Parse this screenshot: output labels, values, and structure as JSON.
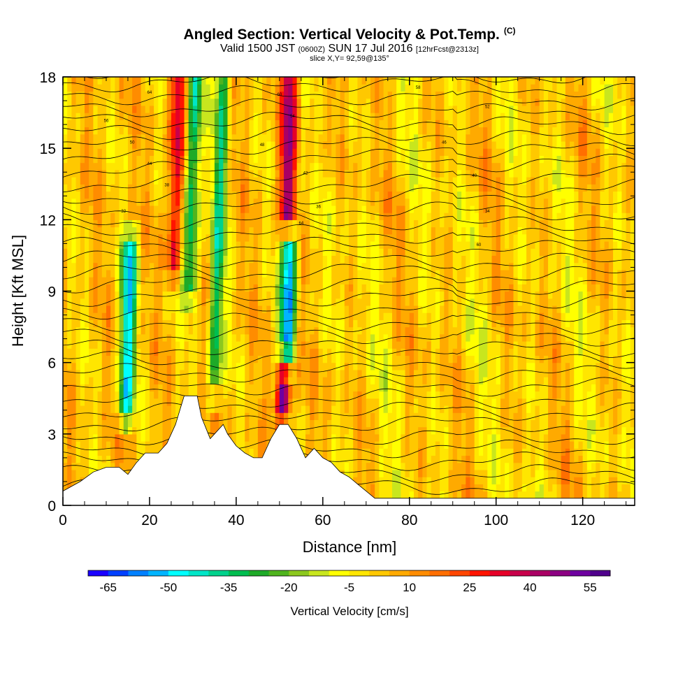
{
  "header": {
    "title": "Angled Section: Vertical Velocity & Pot.Temp.",
    "title_tag": "(C)",
    "valid_pre": "Valid 1500 JST",
    "valid_z": "(0600Z)",
    "valid_date": "SUN 17 Jul 2016",
    "fcst": "[12hrFcst@2313z]",
    "slice": "slice X,Y= 92,59@135°"
  },
  "chart_data": {
    "type": "heatmap",
    "title": "Angled Section: Vertical Velocity & Pot.Temp.",
    "xlabel": "Distance [nm]",
    "ylabel": "Height [Kft MSL]",
    "xlim": [
      0,
      132
    ],
    "ylim": [
      0,
      18
    ],
    "x_ticks": [
      0,
      20,
      40,
      60,
      80,
      100,
      120
    ],
    "y_ticks": [
      0,
      3,
      6,
      9,
      12,
      15,
      18
    ],
    "colorbar": {
      "label": "Vertical Velocity [cm/s]",
      "min": -70,
      "max": 60,
      "step": 5,
      "tick_values": [
        -65,
        -50,
        -35,
        -20,
        -5,
        10,
        25,
        40,
        55
      ],
      "colors": [
        "#1a00ff",
        "#0040ff",
        "#0080ff",
        "#00b4ff",
        "#00ffff",
        "#00e6c8",
        "#00d28c",
        "#00be50",
        "#1eaa28",
        "#50b41e",
        "#8cc81e",
        "#c8e61e",
        "#ffff00",
        "#ffe600",
        "#ffc800",
        "#ffaa00",
        "#ff8c00",
        "#ff6e00",
        "#ff4600",
        "#ff1400",
        "#e60028",
        "#c8004b",
        "#aa0064",
        "#8c0082",
        "#6e00a0",
        "#50008c"
      ]
    },
    "updrafts": [
      {
        "x": 15,
        "y_min": 4,
        "y_max": 11,
        "value": -50
      },
      {
        "x": 30,
        "y_min": 9,
        "y_max": 18,
        "value": -40
      },
      {
        "x": 36,
        "y_min": 5,
        "y_max": 18,
        "value": -35
      },
      {
        "x": 52,
        "y_min": 6,
        "y_max": 11,
        "value": -60
      },
      {
        "x": 51,
        "y_min": 4,
        "y_max": 6,
        "value": 55
      },
      {
        "x": 52,
        "y_min": 12,
        "y_max": 18,
        "value": 40
      },
      {
        "x": 26,
        "y_min": 10,
        "y_max": 18,
        "value": 30
      }
    ],
    "theta_contour_labels": [
      "64",
      "60",
      "58",
      "56",
      "54",
      "52",
      "50",
      "48",
      "46",
      "44",
      "42",
      "40",
      "38",
      "36",
      "34",
      "32"
    ],
    "terrain": [
      [
        0,
        0.6
      ],
      [
        4,
        1.0
      ],
      [
        7,
        1.4
      ],
      [
        10,
        1.6
      ],
      [
        13,
        1.6
      ],
      [
        15,
        1.3
      ],
      [
        17,
        1.8
      ],
      [
        19,
        2.2
      ],
      [
        22,
        2.2
      ],
      [
        24,
        2.6
      ],
      [
        26,
        3.4
      ],
      [
        28,
        4.6
      ],
      [
        31,
        4.6
      ],
      [
        32,
        3.7
      ],
      [
        34,
        2.8
      ],
      [
        35,
        3.0
      ],
      [
        37,
        3.4
      ],
      [
        38,
        3.0
      ],
      [
        40,
        2.5
      ],
      [
        42,
        2.2
      ],
      [
        44,
        2.0
      ],
      [
        46,
        2.0
      ],
      [
        48,
        2.8
      ],
      [
        50,
        3.4
      ],
      [
        52,
        3.4
      ],
      [
        54,
        2.8
      ],
      [
        56,
        2.0
      ],
      [
        58,
        2.4
      ],
      [
        60,
        2.0
      ],
      [
        62,
        1.8
      ],
      [
        64,
        1.4
      ],
      [
        66,
        1.2
      ],
      [
        68,
        0.9
      ],
      [
        70,
        0.6
      ],
      [
        72,
        0.3
      ],
      [
        132,
        0.3
      ]
    ]
  }
}
